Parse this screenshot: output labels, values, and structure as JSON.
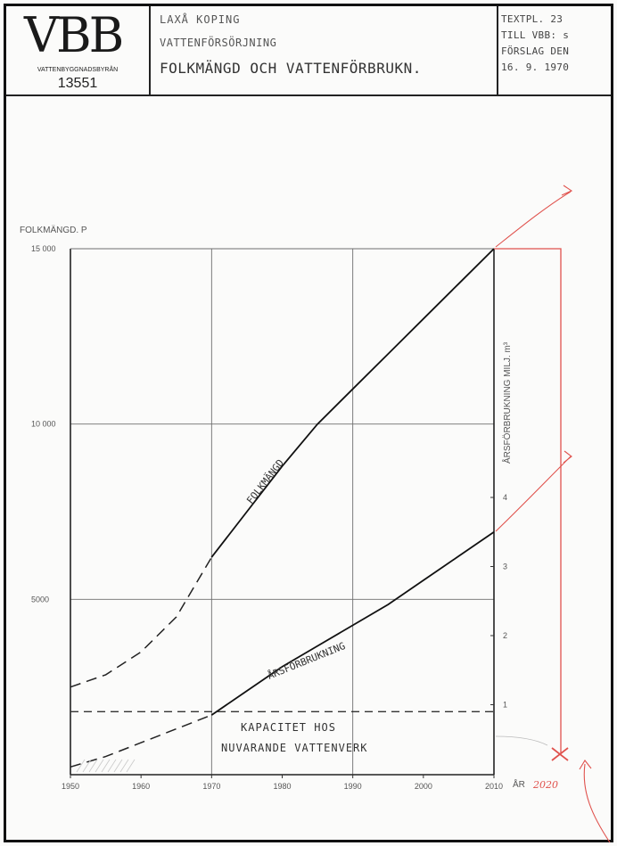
{
  "titleblock": {
    "logo": "VBB",
    "logo_subtitle": "VATTENBYGGNADSBYRÅN",
    "drawing_number": "13551",
    "title_line1": "LAXÅ  KOPING",
    "title_line2": "VATTENFÖRSÖRJNING",
    "title_line3": "FOLKMÄNGD  OCH  VATTENFÖRBRUKN.",
    "ref_line1": "TEXTPL. 23",
    "ref_line2": "TILL VBB: s",
    "ref_line3": "FÖRSLAG  DEN",
    "ref_line4": "16. 9. 1970"
  },
  "annotations": {
    "folkmangd_curve_label": "FOLKMÄNGD",
    "arsforbrukning_curve_label": "ÅRSFÖRBRUKNING",
    "capacity_line1": "KAPACITET  HOS",
    "capacity_line2": "NUVARANDE  VATTENVERK",
    "handwritten_year": "2020"
  },
  "colors": {
    "ink": "#1a1a1a",
    "grid": "#6e6e6e",
    "handwritten_red": "#e0524d"
  },
  "chart_data": {
    "type": "line",
    "x_label": "ÅR",
    "y_label_left": "FOLKMÄNGD. P",
    "y_label_right": "ÅRSFÖRBRUKNING  MILJ. m³",
    "x_range": [
      1950,
      2010
    ],
    "y_left_range": [
      0,
      15000
    ],
    "y_right_range": [
      0,
      7.5
    ],
    "x_ticks": [
      "1950",
      "1960",
      "1970",
      "1980",
      "1990",
      "2000",
      "2010"
    ],
    "y_left_ticks": [
      {
        "value": 5000,
        "label": "5000"
      },
      {
        "value": 10000,
        "label": "10 000"
      },
      {
        "value": 15000,
        "label": "15 000"
      }
    ],
    "y_right_ticks": [
      "1",
      "2",
      "3",
      "4"
    ],
    "gridlines_x": [
      1970,
      1990
    ],
    "gridlines_y": [
      5000,
      10000
    ],
    "series": [
      {
        "name": "FOLKMÄNGD",
        "axis": "left",
        "points": [
          [
            1950,
            2500
          ],
          [
            1955,
            2850
          ],
          [
            1960,
            3500
          ],
          [
            1965,
            4500
          ],
          [
            1970,
            6200
          ],
          [
            1975,
            7500
          ],
          [
            1980,
            8800
          ],
          [
            1985,
            10000
          ],
          [
            1990,
            11000
          ],
          [
            1995,
            12000
          ],
          [
            2000,
            13000
          ],
          [
            2005,
            14000
          ],
          [
            2010,
            15000
          ]
        ],
        "projected_until": 1970
      },
      {
        "name": "ÅRSFÖRBRUKNING",
        "axis": "right",
        "points": [
          [
            1950,
            0.1
          ],
          [
            1955,
            0.25
          ],
          [
            1960,
            0.45
          ],
          [
            1965,
            0.65
          ],
          [
            1970,
            0.85
          ],
          [
            1975,
            1.2
          ],
          [
            1980,
            1.55
          ],
          [
            1985,
            1.85
          ],
          [
            1990,
            2.15
          ],
          [
            1995,
            2.45
          ],
          [
            2000,
            2.8
          ],
          [
            2005,
            3.15
          ],
          [
            2010,
            3.5
          ]
        ],
        "projected_until": 1970
      },
      {
        "name": "KAPACITET HOS NUVARANDE VATTENVERK",
        "axis": "right",
        "points": [
          [
            1950,
            0.9
          ],
          [
            2010,
            0.9
          ]
        ],
        "style": "dashed"
      }
    ]
  }
}
